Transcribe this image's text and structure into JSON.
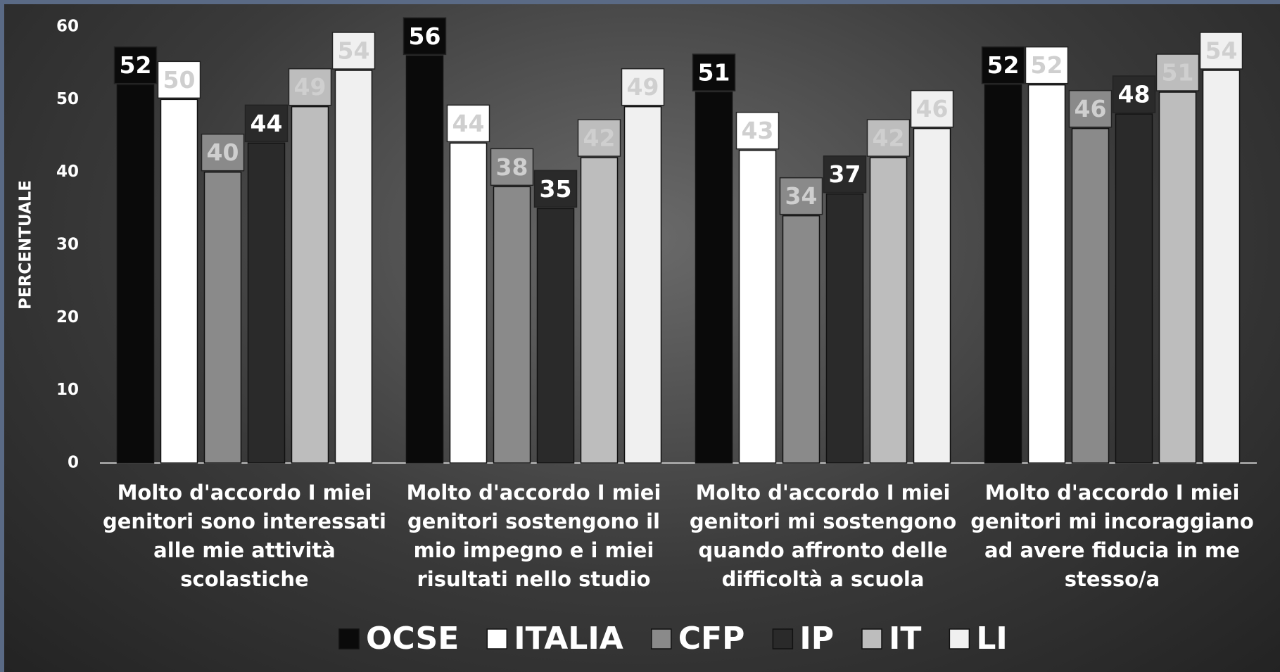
{
  "chart_data": {
    "type": "bar",
    "y_label": "PERCENTUALE",
    "categories": [
      "Molto d'accordo I miei genitori sono interessati alle mie attività scolastiche",
      "Molto d'accordo I miei genitori sostengono il mio impegno e i miei risultati nello studio",
      "Molto d'accordo I miei genitori mi sostengono quando affronto delle difficoltà a scuola",
      "Molto d'accordo I miei genitori mi incoraggiano ad avere fiducia in me stesso/a"
    ],
    "series": [
      {
        "name": "OCSE",
        "color": "#0a0a0a",
        "values": [
          52,
          56,
          51,
          52
        ]
      },
      {
        "name": "ITALIA",
        "color": "#ffffff",
        "values": [
          50,
          44,
          43,
          52
        ]
      },
      {
        "name": "CFP",
        "color": "#8a8a8a",
        "values": [
          40,
          38,
          34,
          46
        ]
      },
      {
        "name": "IP",
        "color": "#2a2a2a",
        "values": [
          44,
          35,
          37,
          48
        ]
      },
      {
        "name": "IT",
        "color": "#bdbdbd",
        "values": [
          49,
          42,
          42,
          51
        ]
      },
      {
        "name": "LI",
        "color": "#f0f0f0",
        "values": [
          54,
          49,
          46,
          54
        ]
      }
    ],
    "ylim": [
      0,
      60
    ],
    "yticks": [
      0,
      10,
      20,
      30,
      40,
      50,
      60
    ],
    "grid": false,
    "legend": "bottom"
  }
}
